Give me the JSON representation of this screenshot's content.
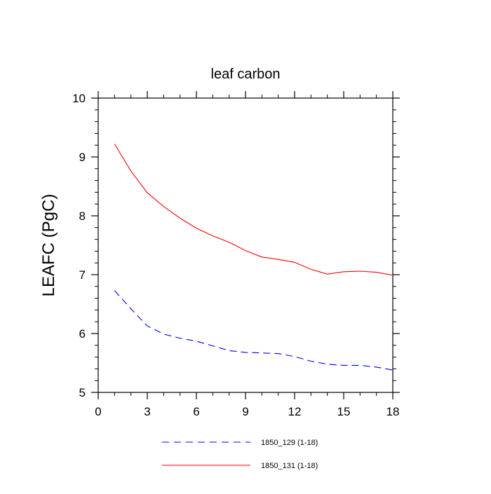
{
  "chart_data": {
    "type": "line",
    "title": "leaf carbon",
    "xlabel": "",
    "ylabel": "LEAFC  (PgC)",
    "xlim": [
      0,
      18
    ],
    "ylim": [
      5,
      10
    ],
    "xticks": [
      0,
      3,
      6,
      9,
      12,
      15,
      18
    ],
    "yticks": [
      5,
      6,
      7,
      8,
      9,
      10
    ],
    "grid": false,
    "legend_position": "bottom-center",
    "x": [
      1,
      2,
      3,
      4,
      5,
      6,
      7,
      8,
      9,
      10,
      11,
      12,
      13,
      14,
      15,
      16,
      17,
      18
    ],
    "series": [
      {
        "name": "1850_129 (1-18)",
        "color": "#0000ff",
        "dash": "dashed",
        "values": [
          6.73,
          6.42,
          6.13,
          5.99,
          5.92,
          5.87,
          5.79,
          5.71,
          5.68,
          5.67,
          5.66,
          5.61,
          5.53,
          5.48,
          5.46,
          5.46,
          5.43,
          5.38
        ]
      },
      {
        "name": "1850_131 (1-18)",
        "color": "#ff0000",
        "dash": "solid",
        "values": [
          9.22,
          8.76,
          8.39,
          8.16,
          7.96,
          7.79,
          7.66,
          7.55,
          7.41,
          7.3,
          7.26,
          7.21,
          7.09,
          7.01,
          7.05,
          7.06,
          7.04,
          6.99
        ]
      }
    ]
  }
}
